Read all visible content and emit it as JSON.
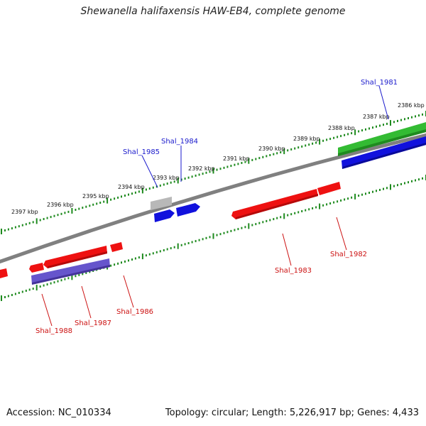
{
  "title": "Shewanella halifaxensis HAW-EB4, complete genome",
  "footer": {
    "accession": "Accession: NC_010334",
    "summary": "Topology: circular; Length: 5,226,917 bp; Genes: 4,433"
  },
  "colors": {
    "backbone": "#808080",
    "ruler": "#1e8a1e",
    "forward_label": "#1a1acc",
    "reverse_label": "#cc1111",
    "feature_red": "#ee1111",
    "feature_blue": "#1111dd",
    "feature_green": "#33bb33",
    "feature_purple": "#6655cc",
    "feature_gray": "#b8b8b8"
  },
  "tick_labels": [
    "2386 kbp",
    "2387 kbp",
    "2388 kbp",
    "2389 kbp",
    "2390 kbp",
    "2391 kbp",
    "2392 kbp",
    "2393 kbp",
    "2394 kbp",
    "2395 kbp",
    "2396 kbp",
    "2397 kbp"
  ],
  "gene_labels": {
    "shal_1981": "Shal_1981",
    "shal_1982": "Shal_1982",
    "shal_1983": "Shal_1983",
    "shal_1984": "Shal_1984",
    "shal_1985": "Shal_1985",
    "shal_1986": "Shal_1986",
    "shal_1987": "Shal_1987",
    "shal_1988": "Shal_1988"
  }
}
